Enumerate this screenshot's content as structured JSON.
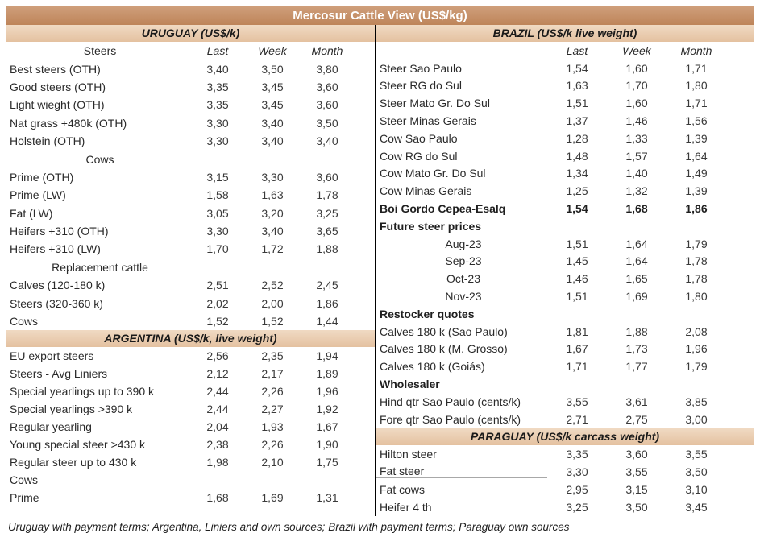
{
  "title": "Mercosur Cattle View (US$/kg)",
  "footer": "Uruguay with payment terms; Argentina, Liniers and own sources; Brazil with payment terms; Paraguay own sources",
  "colors": {
    "title_bg": "#BE8459",
    "title_bg_light": "#CF9F7B",
    "section_bg": "#E4C1A0",
    "section_bg_light": "#F0DAC3"
  },
  "columns": [
    "Last",
    "Week",
    "Month"
  ],
  "left": {
    "sections": [
      {
        "id": "uruguay",
        "header": "URUGUAY (US$/k)",
        "col_header": true,
        "col_label": "Steers",
        "rows": [
          {
            "label": "Best steers (OTH)",
            "values": [
              "3,40",
              "3,50",
              "3,80"
            ]
          },
          {
            "label": "Good steers (OTH)",
            "values": [
              "3,35",
              "3,45",
              "3,60"
            ]
          },
          {
            "label": "Light wieght (OTH)",
            "values": [
              "3,35",
              "3,45",
              "3,60"
            ]
          },
          {
            "label": "Nat grass +480k (OTH)",
            "values": [
              "3,30",
              "3,40",
              "3,50"
            ]
          },
          {
            "label": "Holstein (OTH)",
            "values": [
              "3,30",
              "3,40",
              "3,40"
            ]
          },
          {
            "label": "Cows",
            "values": [
              "",
              "",
              ""
            ],
            "style": "center"
          },
          {
            "label": "Prime (OTH)",
            "values": [
              "3,15",
              "3,30",
              "3,60"
            ]
          },
          {
            "label": "Prime (LW)",
            "values": [
              "1,58",
              "1,63",
              "1,78"
            ]
          },
          {
            "label": "Fat (LW)",
            "values": [
              "3,05",
              "3,20",
              "3,25"
            ]
          },
          {
            "label": "Heifers +310 (OTH)",
            "values": [
              "3,30",
              "3,40",
              "3,65"
            ]
          },
          {
            "label": "Heifers +310 (LW)",
            "values": [
              "1,70",
              "1,72",
              "1,88"
            ]
          },
          {
            "label": "Replacement cattle",
            "values": [
              "",
              "",
              ""
            ],
            "style": "center"
          },
          {
            "label": "Calves (120-180 k)",
            "values": [
              "2,51",
              "2,52",
              "2,45"
            ]
          },
          {
            "label": "Steers (320-360 k)",
            "values": [
              "2,02",
              "2,00",
              "1,86"
            ]
          },
          {
            "label": "Cows",
            "values": [
              "1,52",
              "1,52",
              "1,44"
            ]
          }
        ]
      },
      {
        "id": "argentina",
        "header": "ARGENTINA (US$/k, live weight)",
        "col_header": false,
        "rows": [
          {
            "label": "EU export steers",
            "values": [
              "2,56",
              "2,35",
              "1,94"
            ]
          },
          {
            "label": "Steers - Avg Liniers",
            "values": [
              "2,12",
              "2,17",
              "1,89"
            ]
          },
          {
            "label": "Special yearlings up to 390 k",
            "values": [
              "2,44",
              "2,26",
              "1,96"
            ]
          },
          {
            "label": "Special yearlings >390 k",
            "values": [
              "2,44",
              "2,27",
              "1,92"
            ]
          },
          {
            "label": "Regular yearling",
            "values": [
              "2,04",
              "1,93",
              "1,67"
            ]
          },
          {
            "label": "Young special steer >430 k",
            "values": [
              "2,38",
              "2,26",
              "1,90"
            ]
          },
          {
            "label": "Regular steer up to 430 k",
            "values": [
              "1,98",
              "2,10",
              "1,75"
            ]
          },
          {
            "label": "Cows",
            "values": [
              "",
              "",
              ""
            ]
          },
          {
            "label": "Prime",
            "values": [
              "1,68",
              "1,69",
              "1,31"
            ]
          }
        ]
      }
    ]
  },
  "right": {
    "sections": [
      {
        "id": "brazil",
        "header": "BRAZIL  (US$/k live weight)",
        "col_header": true,
        "col_label": "",
        "rows": [
          {
            "label": "Steer Sao Paulo",
            "values": [
              "1,54",
              "1,60",
              "1,71"
            ]
          },
          {
            "label": "Steer RG do Sul",
            "values": [
              "1,63",
              "1,70",
              "1,80"
            ]
          },
          {
            "label": "Steer Mato Gr. Do Sul",
            "values": [
              "1,51",
              "1,60",
              "1,71"
            ]
          },
          {
            "label": "Steer Minas Gerais",
            "values": [
              "1,37",
              "1,46",
              "1,56"
            ]
          },
          {
            "label": "Cow Sao Paulo",
            "values": [
              "1,28",
              "1,33",
              "1,39"
            ]
          },
          {
            "label": "Cow RG do Sul",
            "values": [
              "1,48",
              "1,57",
              "1,64"
            ]
          },
          {
            "label": "Cow Mato Gr. Do Sul",
            "values": [
              "1,34",
              "1,40",
              "1,49"
            ]
          },
          {
            "label": "Cow Minas Gerais",
            "values": [
              "1,25",
              "1,32",
              "1,39"
            ]
          },
          {
            "label": "Boi Gordo Cepea-Esalq",
            "values": [
              "1,54",
              "1,68",
              "1,86"
            ],
            "style": "bold"
          },
          {
            "label": "Future steer prices",
            "values": [
              "",
              "",
              ""
            ],
            "style": "bold"
          },
          {
            "label": "Aug-23",
            "values": [
              "1,51",
              "1,64",
              "1,79"
            ],
            "style": "indent"
          },
          {
            "label": "Sep-23",
            "values": [
              "1,45",
              "1,64",
              "1,78"
            ],
            "style": "indent"
          },
          {
            "label": "Oct-23",
            "values": [
              "1,46",
              "1,65",
              "1,78"
            ],
            "style": "indent"
          },
          {
            "label": "Nov-23",
            "values": [
              "1,51",
              "1,69",
              "1,80"
            ],
            "style": "indent"
          },
          {
            "label": "Restocker quotes",
            "values": [
              "",
              "",
              ""
            ],
            "style": "bold"
          },
          {
            "label": "Calves 180 k (Sao Paulo)",
            "values": [
              "1,81",
              "1,88",
              "2,08"
            ]
          },
          {
            "label": "Calves 180 k (M. Grosso)",
            "values": [
              "1,67",
              "1,73",
              "1,96"
            ]
          },
          {
            "label": "Calves 180 k (Goiás)",
            "values": [
              "1,71",
              "1,77",
              "1,79"
            ]
          },
          {
            "label": "Wholesaler",
            "values": [
              "",
              "",
              ""
            ],
            "style": "bold"
          },
          {
            "label": "Hind qtr Sao Paulo (cents/k)",
            "values": [
              "3,55",
              "3,61",
              "3,85"
            ]
          },
          {
            "label": "Fore qtr Sao Paulo (cents/k)",
            "values": [
              "2,71",
              "2,75",
              "3,00"
            ]
          }
        ]
      },
      {
        "id": "paraguay",
        "header": "PARAGUAY  (US$/k carcass weight)",
        "col_header": false,
        "rows": [
          {
            "label": "Hilton steer",
            "values": [
              "3,35",
              "3,60",
              "3,55"
            ]
          },
          {
            "label": "Fat steer",
            "values": [
              "3,30",
              "3,55",
              "3,50"
            ],
            "style": "underline"
          },
          {
            "label": "Fat cows",
            "values": [
              "2,95",
              "3,15",
              "3,10"
            ]
          },
          {
            "label": "Heifer 4 th",
            "values": [
              "3,25",
              "3,50",
              "3,45"
            ]
          }
        ]
      }
    ]
  }
}
